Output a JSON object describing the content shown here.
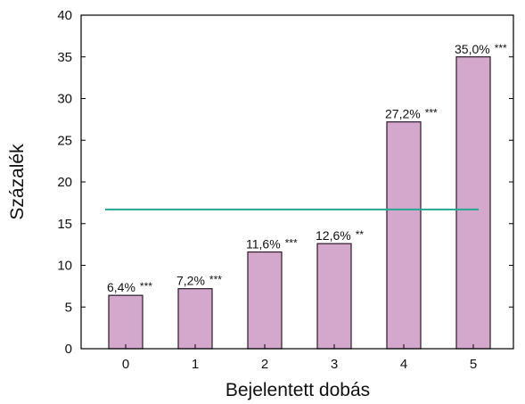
{
  "chart_data": {
    "type": "bar",
    "categories": [
      "0",
      "1",
      "2",
      "3",
      "4",
      "5"
    ],
    "values": [
      6.4,
      7.2,
      11.6,
      12.6,
      27.2,
      35.0
    ],
    "data_labels": [
      "6,4%",
      "7,2%",
      "11,6%",
      "12,6%",
      "27,2%",
      "35,0%"
    ],
    "significance": [
      "***",
      "***",
      "***",
      "**",
      "***",
      "***"
    ],
    "xlabel": "Bejelentett dobás",
    "ylabel": "Százalék",
    "ylim": [
      0,
      40
    ],
    "yticks": [
      0,
      5,
      10,
      15,
      20,
      25,
      30,
      35,
      40
    ],
    "reference_line": {
      "y": 16.7,
      "color": "#22a891"
    },
    "bar_color": "#d4a8cc",
    "bar_edge_color": "#2a1a2a",
    "grid": false
  }
}
